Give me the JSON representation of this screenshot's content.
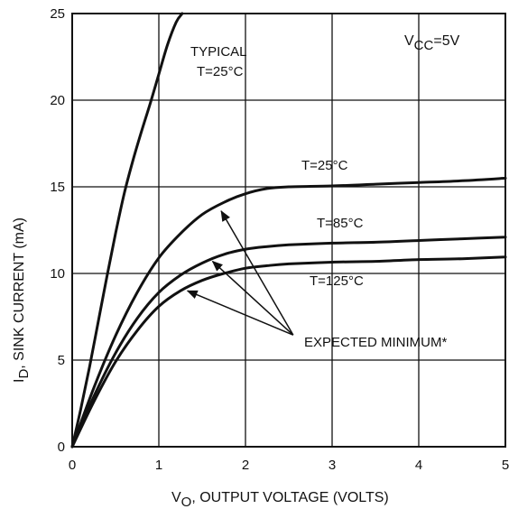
{
  "chart_data": {
    "type": "line",
    "xlabel_main": "V",
    "xlabel_sub": "O",
    "xlabel_rest": ", OUTPUT VOLTAGE (VOLTS)",
    "ylabel_main": "I",
    "ylabel_sub": "D",
    "ylabel_rest": ", SINK CURRENT (mA)",
    "xlim": [
      0,
      5
    ],
    "ylim": [
      0,
      25
    ],
    "xticks": [
      0,
      1,
      2,
      3,
      4,
      5
    ],
    "yticks": [
      0,
      5,
      10,
      15,
      20,
      25
    ],
    "grid": true,
    "series": [
      {
        "name": "TYPICAL T=25°C",
        "style": "solid",
        "x": [
          0,
          0.1,
          0.2,
          0.3,
          0.4,
          0.5,
          0.6,
          0.7,
          0.8,
          0.9,
          1.0,
          1.1,
          1.2,
          1.27
        ],
        "y": [
          0,
          2.2,
          4.6,
          7.2,
          9.8,
          12.3,
          14.6,
          16.5,
          18.2,
          19.8,
          21.5,
          23.2,
          24.5,
          25
        ]
      },
      {
        "name": "T=25°C",
        "style": "solid",
        "x": [
          0,
          0.25,
          0.5,
          0.75,
          1.0,
          1.25,
          1.5,
          1.75,
          2.0,
          2.25,
          2.5,
          3.0,
          3.5,
          4.0,
          4.5,
          5.0
        ],
        "y": [
          0,
          3.4,
          6.4,
          8.9,
          10.9,
          12.3,
          13.4,
          14.1,
          14.6,
          14.9,
          15.0,
          15.05,
          15.15,
          15.25,
          15.35,
          15.5
        ]
      },
      {
        "name": "T=85°C",
        "style": "solid",
        "x": [
          0,
          0.25,
          0.5,
          0.75,
          1.0,
          1.25,
          1.5,
          1.75,
          2.0,
          2.25,
          2.5,
          3.0,
          3.5,
          4.0,
          4.5,
          5.0
        ],
        "y": [
          0,
          2.9,
          5.4,
          7.4,
          8.9,
          9.9,
          10.6,
          11.1,
          11.4,
          11.55,
          11.65,
          11.75,
          11.8,
          11.9,
          12.0,
          12.1
        ]
      },
      {
        "name": "T=125°C",
        "style": "solid",
        "x": [
          0,
          0.25,
          0.5,
          0.75,
          1.0,
          1.25,
          1.5,
          1.75,
          2.0,
          2.25,
          2.5,
          3.0,
          3.5,
          4.0,
          4.5,
          5.0
        ],
        "y": [
          0,
          2.6,
          4.9,
          6.7,
          8.1,
          9.0,
          9.6,
          10.0,
          10.3,
          10.45,
          10.55,
          10.65,
          10.7,
          10.8,
          10.85,
          10.95
        ]
      }
    ],
    "annotations": {
      "typical_line1": "TYPICAL",
      "typical_line2": "T=25°C",
      "vcc_main": "V",
      "vcc_sub": "CC",
      "vcc_rest": "=5V",
      "t25": "T=25°C",
      "t85": "T=85°C",
      "t125": "T=125°C",
      "expected": "EXPECTED MINIMUM*"
    },
    "arrows": [
      {
        "from": [
          2.55,
          6.45
        ],
        "to": [
          1.72,
          13.6
        ]
      },
      {
        "from": [
          2.55,
          6.45
        ],
        "to": [
          1.62,
          10.7
        ]
      },
      {
        "from": [
          2.55,
          6.45
        ],
        "to": [
          1.33,
          9.0
        ]
      }
    ]
  }
}
